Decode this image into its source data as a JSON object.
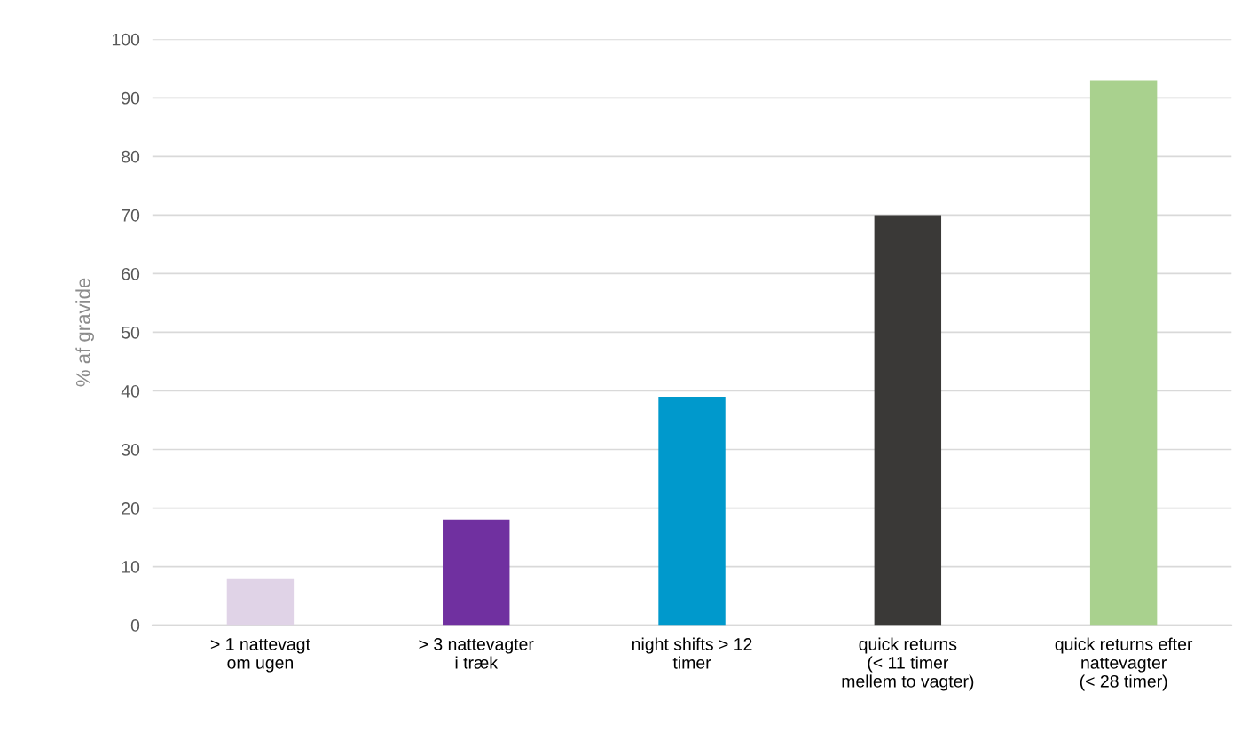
{
  "chart_data": {
    "type": "bar",
    "ylabel": "% af gravide",
    "categories": [
      "> 1 nattevagt\nom ugen",
      "> 3 nattevagter\ni træk",
      "night shifts > 12\ntimer",
      "quick returns\n(< 11 timer\nmellem to vagter)",
      "quick returns efter\nnattevagter\n(< 28 timer)"
    ],
    "values": [
      8,
      18,
      39,
      70,
      93
    ],
    "colors": [
      "#e0d3e7",
      "#7030a0",
      "#0099cc",
      "#3a3937",
      "#a9d18e"
    ],
    "ylim": [
      0,
      100
    ],
    "yticks": [
      0,
      10,
      20,
      30,
      40,
      50,
      60,
      70,
      80,
      90,
      100
    ],
    "grid": "y"
  }
}
